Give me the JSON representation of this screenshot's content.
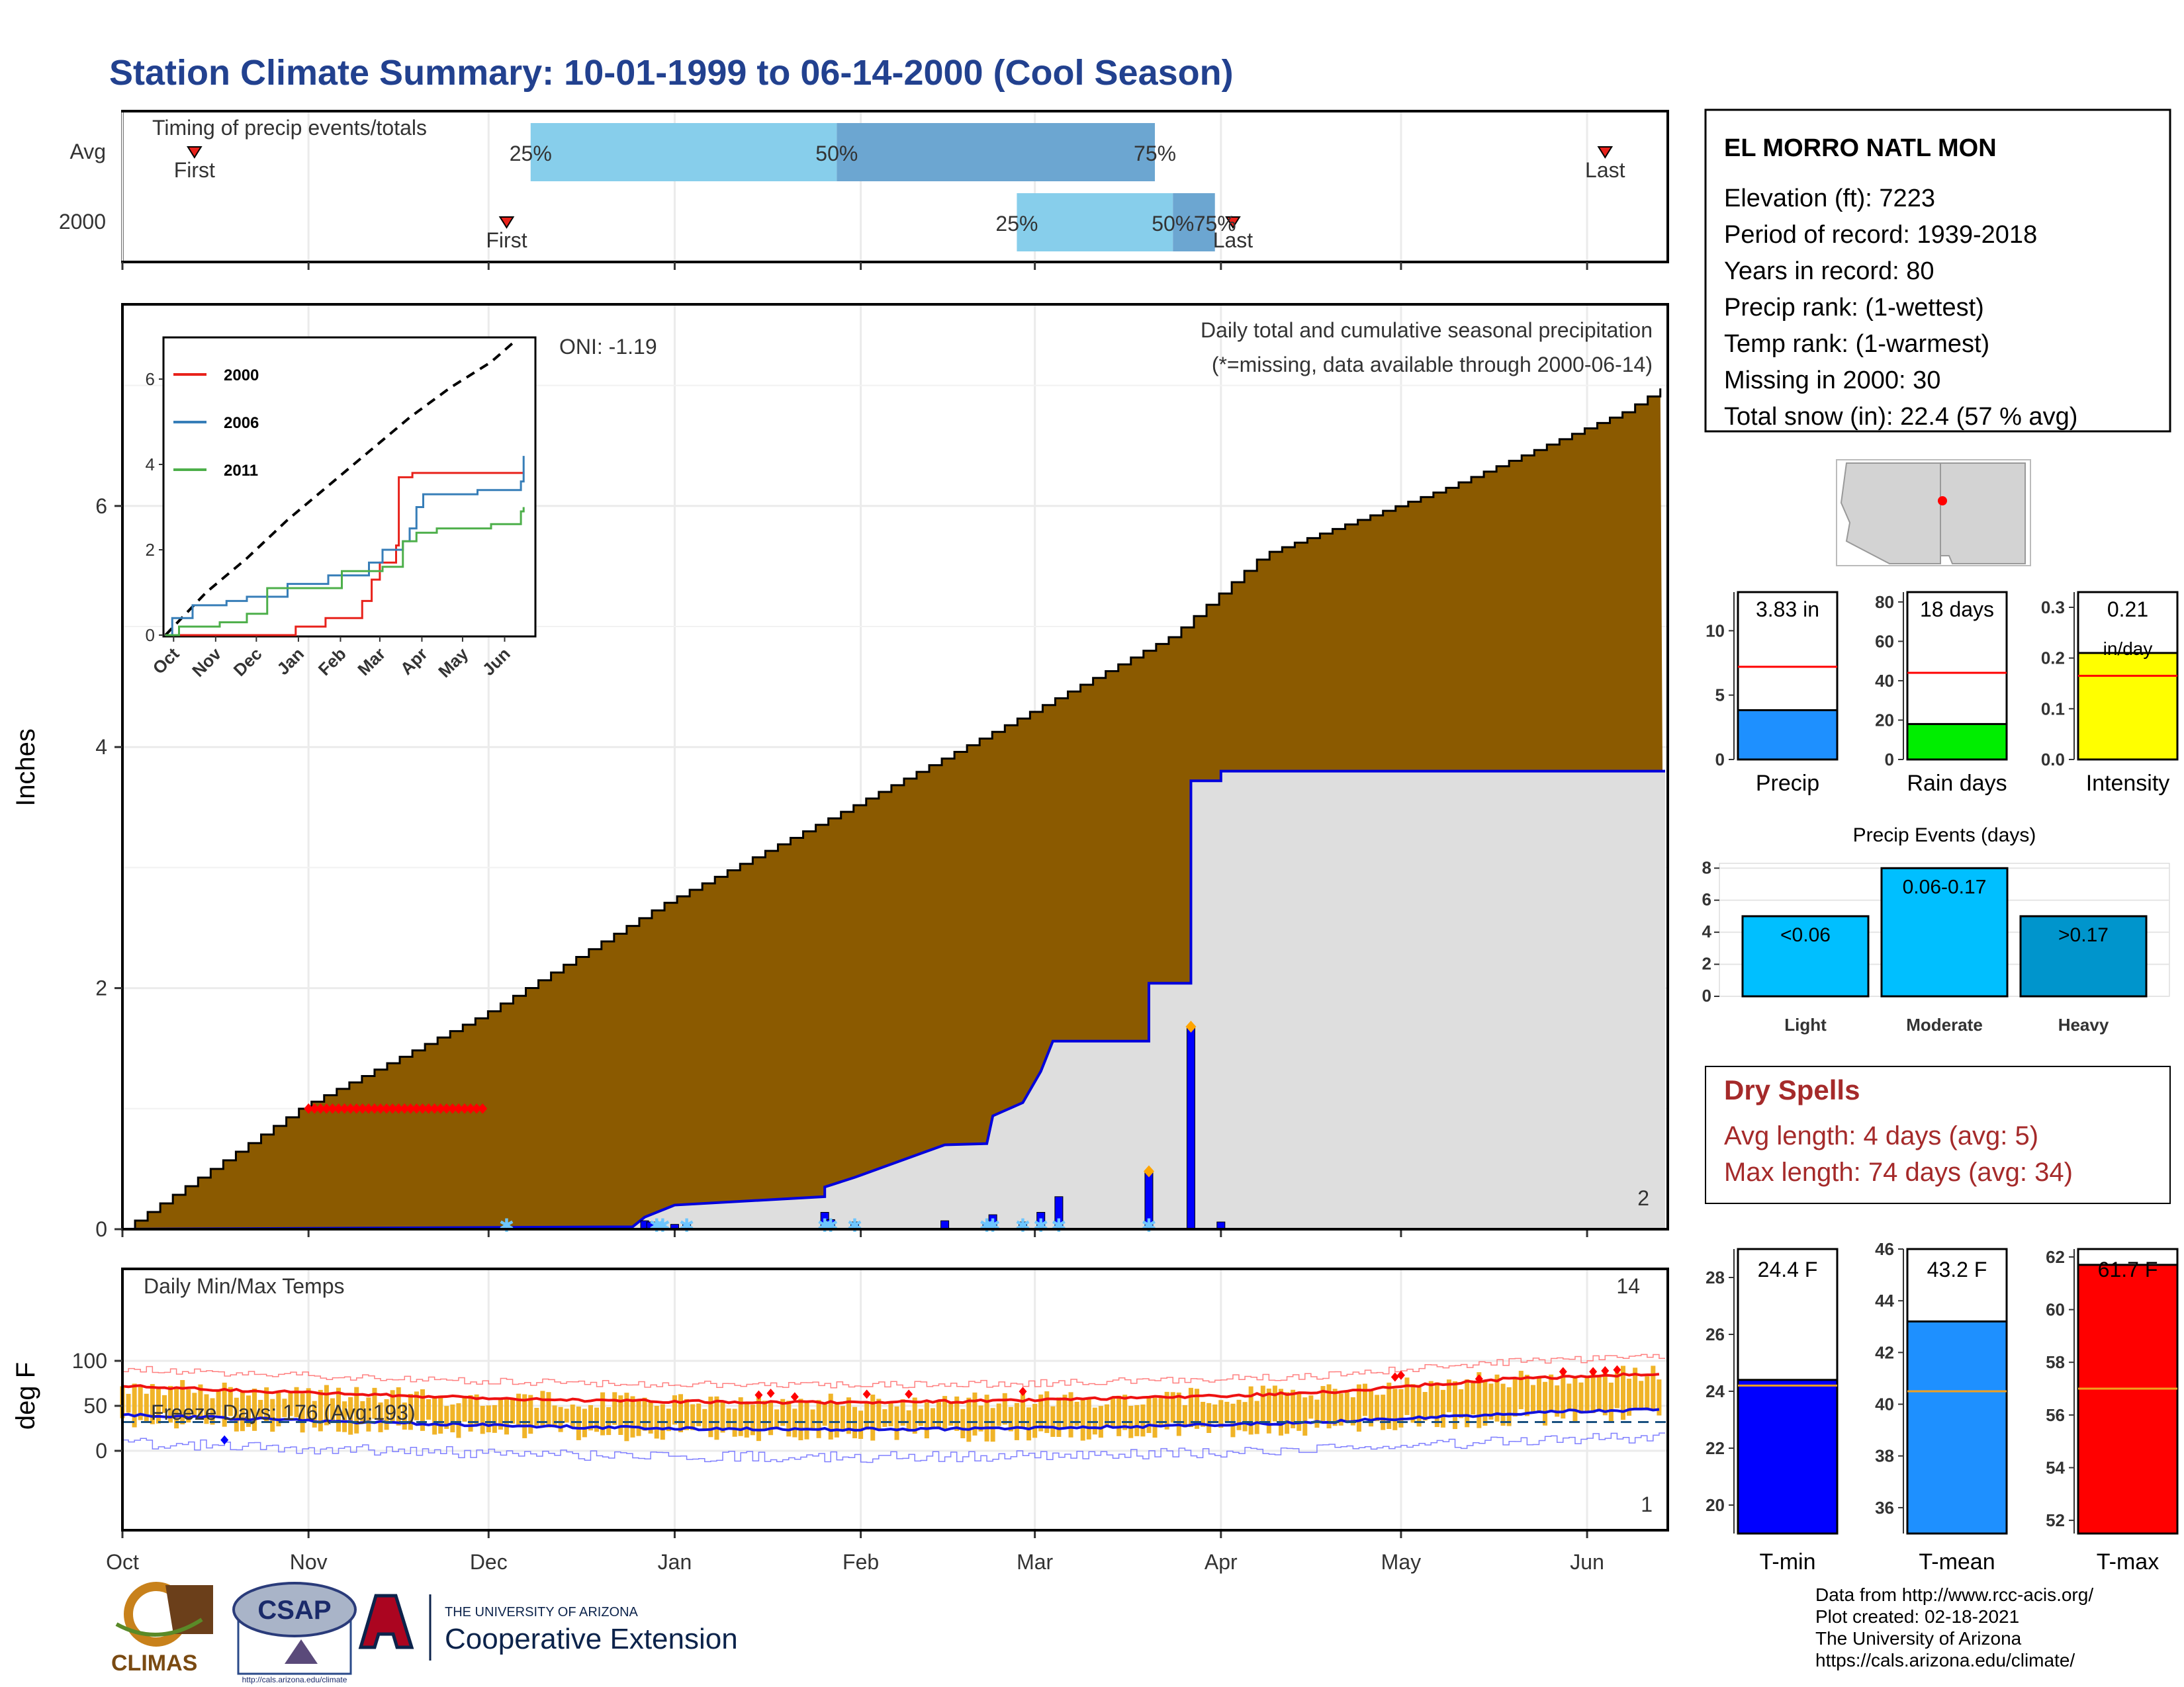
{
  "title": "Station Climate Summary: 10-01-1999 to 06-14-2000 (Cool Season)",
  "timing": {
    "label": "Timing of precip events/totals",
    "rows": [
      "Avg",
      "2000"
    ],
    "avg": {
      "first": "First",
      "last": "Last",
      "p25": "25%",
      "p50": "50%",
      "p75": "75%",
      "first_day": 12,
      "last_day": 247,
      "q25_day": 68,
      "q50_day": 119,
      "q75_day": 172
    },
    "yr": {
      "first": "First",
      "last": "Last",
      "p25": "25%",
      "p50": "50%",
      "p75": "75%",
      "first_day": 64,
      "last_day": 185,
      "q25_day": 149,
      "q50_day": 175,
      "q75_day": 182
    }
  },
  "precip": {
    "ylabel": "Inches",
    "title": "Daily total and cumulative seasonal precipitation",
    "missing_note": "(*=missing, data available through 2000-06-14)",
    "oni": "ONI: -1.19",
    "count_label": "2",
    "yticks": [
      "0",
      "2",
      "4",
      "6"
    ],
    "ymax": 7.7,
    "avg_cum": [
      [
        0,
        0
      ],
      [
        30,
        1.02
      ],
      [
        60,
        1.78
      ],
      [
        90,
        2.7
      ],
      [
        120,
        3.47
      ],
      [
        150,
        4.26
      ],
      [
        175,
        4.93
      ],
      [
        190,
        5.6
      ],
      [
        220,
        6.14
      ],
      [
        250,
        6.78
      ],
      [
        257,
        7.0
      ]
    ],
    "yr_cum": [
      [
        0,
        0
      ],
      [
        85,
        0.02
      ],
      [
        87,
        0.1
      ],
      [
        92,
        0.2
      ],
      [
        117,
        0.27
      ],
      [
        117,
        0.35
      ],
      [
        122,
        0.43
      ],
      [
        137,
        0.7
      ],
      [
        144,
        0.71
      ],
      [
        145,
        0.94
      ],
      [
        150,
        1.05
      ],
      [
        153,
        1.31
      ],
      [
        155,
        1.56
      ],
      [
        156,
        1.56
      ],
      [
        171,
        1.56
      ],
      [
        171,
        2.04
      ],
      [
        178,
        2.04
      ],
      [
        178,
        3.72
      ],
      [
        183,
        3.72
      ],
      [
        183,
        3.8
      ],
      [
        257,
        3.8
      ]
    ],
    "daily_bars": [
      [
        87,
        0.07
      ],
      [
        88,
        0.06
      ],
      [
        92,
        0.04
      ],
      [
        94,
        0.05
      ],
      [
        117,
        0.14
      ],
      [
        118,
        0.08
      ],
      [
        122,
        0.06
      ],
      [
        137,
        0.07
      ],
      [
        144,
        0.05
      ],
      [
        145,
        0.12
      ],
      [
        150,
        0.06
      ],
      [
        153,
        0.14
      ],
      [
        156,
        0.27
      ],
      [
        171,
        0.48
      ],
      [
        178,
        1.68
      ],
      [
        183,
        0.06
      ]
    ],
    "missing_days": [
      31,
      32,
      33,
      34,
      35,
      36,
      37,
      38,
      39,
      40,
      41,
      42,
      43,
      44,
      45,
      46,
      47,
      48,
      49,
      50,
      51,
      52,
      53,
      54,
      55,
      56,
      57,
      58,
      59,
      60
    ],
    "snow_days": [
      64,
      89,
      90,
      94,
      117,
      118,
      122,
      144,
      145,
      150,
      153,
      156,
      171
    ],
    "orange_points": [
      [
        171,
        0.48
      ],
      [
        178,
        1.68
      ]
    ]
  },
  "inset": {
    "series": [
      {
        "name": "2000",
        "color": "#e8221b"
      },
      {
        "name": "2006",
        "color": "#377eb8"
      },
      {
        "name": "2011",
        "color": "#4daf4a"
      }
    ],
    "yticks": [
      "0",
      "2",
      "4",
      "6"
    ],
    "xticks": [
      "Oct",
      "Nov",
      "Dec",
      "Jan",
      "Feb",
      "Mar",
      "Apr",
      "May",
      "Jun"
    ]
  },
  "station": {
    "name": "EL MORRO NATL MON",
    "lines": [
      "Elevation (ft): 7223",
      "Period of record: 1939-2018",
      "Years in record: 80",
      "Precip rank:  (1-wettest)",
      "Temp rank:  (1-warmest)",
      "Missing in 2000: 30",
      "Total snow (in): 22.4 (57 % avg)"
    ]
  },
  "mini_bars": [
    {
      "label": "Precip",
      "value_label": "3.83 in",
      "value": 3.83,
      "avg": 7.2,
      "max": 13,
      "ticks": [
        "0",
        "5",
        "10"
      ],
      "color": "#1e90ff"
    },
    {
      "label": "Rain days",
      "value_label": "18 days",
      "value": 18,
      "avg": 44,
      "max": 85,
      "ticks": [
        "0",
        "20",
        "40",
        "60",
        "80"
      ],
      "color": "#00ee00"
    },
    {
      "label": "Intensity",
      "value_label": "0.21",
      "value_unit": "in/day",
      "value": 0.21,
      "avg": 0.165,
      "max": 0.33,
      "ticks": [
        "0.0",
        "0.1",
        "0.2",
        "0.3"
      ],
      "color": "#ffff00"
    }
  ],
  "events": {
    "title": "Precip Events (days)",
    "ticks": [
      "0",
      "2",
      "4",
      "6",
      "8"
    ],
    "bars": [
      {
        "cat": "Light",
        "label": "<0.06",
        "value": 5
      },
      {
        "cat": "Moderate",
        "label": "0.06-0.17",
        "value": 8
      },
      {
        "cat": "Heavy",
        "label": ">0.17",
        "value": 5
      }
    ]
  },
  "dry": {
    "title": "Dry Spells",
    "avg": "Avg length: 4 days (avg: 5)",
    "max": "Max length: 74 days (avg: 34)"
  },
  "temps": {
    "ylabel": "deg F",
    "title": "Daily Min/Max Temps",
    "freeze": "Freeze Days: 176 (Avg:193)",
    "count_hi": "14",
    "count_lo": "1",
    "yticks": [
      "0",
      "50",
      "100"
    ],
    "xticks": [
      "Oct",
      "Nov",
      "Dec",
      "Jan",
      "Feb",
      "Mar",
      "Apr",
      "May",
      "Jun"
    ]
  },
  "temp_bars": [
    {
      "label": "T-min",
      "value_label": "24.4 F",
      "value": 24.4,
      "avg": 24.2,
      "min": 19,
      "max": 29,
      "ticks": [
        "20",
        "22",
        "24",
        "26",
        "28"
      ],
      "color": "#0000ff"
    },
    {
      "label": "T-mean",
      "value_label": "43.2 F",
      "value": 43.2,
      "avg": 40.5,
      "min": 35,
      "max": 46,
      "ticks": [
        "36",
        "38",
        "40",
        "42",
        "44",
        "46"
      ],
      "color": "#1e90ff"
    },
    {
      "label": "T-max",
      "value_label": "61.7 F",
      "value": 61.7,
      "avg": 57,
      "min": 51.5,
      "max": 62.3,
      "ticks": [
        "52",
        "54",
        "56",
        "58",
        "60",
        "62"
      ],
      "color": "#ff0000"
    }
  ],
  "footer": {
    "lines": [
      "Data from http://www.rcc-acis.org/",
      "Plot created: 02-18-2021",
      "The University of Arizona",
      "https://cals.arizona.edu/climate/"
    ],
    "climas": "CLIMAS",
    "csap": "CSAP",
    "csap_url": "http://cals.arizona.edu/climate",
    "ua_small": "THE UNIVERSITY OF ARIZONA",
    "ua_big": "Cooperative Extension"
  }
}
